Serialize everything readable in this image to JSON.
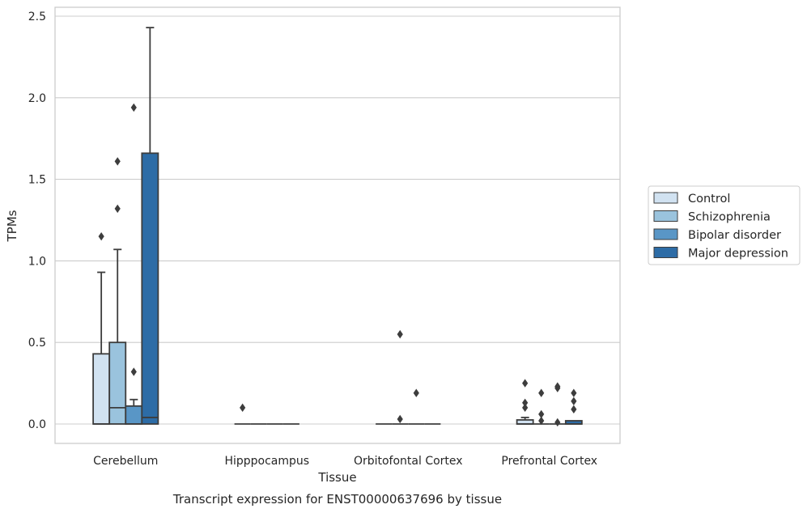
{
  "chart_data": {
    "type": "box",
    "title": "Transcript expression for ENST00000637696 by tissue",
    "xlabel": "Tissue",
    "ylabel": "TPMs",
    "ylim": [
      -0.12,
      2.56
    ],
    "yticks": [
      0.0,
      0.5,
      1.0,
      1.5,
      2.0,
      2.5
    ],
    "ytick_labels": [
      "0.0",
      "0.5",
      "1.0",
      "1.5",
      "2.0",
      "2.5"
    ],
    "grid": true,
    "legend_position": "right",
    "categories": [
      "Cerebellum",
      "Hipppocampus",
      "Orbitofontal Cortex",
      "Prefrontal Cortex"
    ],
    "series": [
      {
        "name": "Control",
        "color": "#d1e2f1",
        "boxes": [
          {
            "q1": 0.0,
            "median": 0.0,
            "q3": 0.43,
            "whisker_low": 0.0,
            "whisker_high": 0.93,
            "outliers": [
              1.15
            ]
          },
          {
            "q1": 0.0,
            "median": 0.0,
            "q3": 0.0,
            "whisker_low": 0.0,
            "whisker_high": 0.0,
            "outliers": [
              0.1
            ]
          },
          {
            "q1": 0.0,
            "median": 0.0,
            "q3": 0.0,
            "whisker_low": 0.0,
            "whisker_high": 0.0,
            "outliers": []
          },
          {
            "q1": 0.0,
            "median": 0.0,
            "q3": 0.025,
            "whisker_low": 0.0,
            "whisker_high": 0.04,
            "outliers": [
              0.1,
              0.13,
              0.25
            ]
          }
        ]
      },
      {
        "name": "Schizophrenia",
        "color": "#9ac3dd",
        "boxes": [
          {
            "q1": 0.0,
            "median": 0.1,
            "q3": 0.5,
            "whisker_low": 0.0,
            "whisker_high": 1.07,
            "outliers": [
              1.32,
              1.61
            ]
          },
          {
            "q1": 0.0,
            "median": 0.0,
            "q3": 0.0,
            "whisker_low": 0.0,
            "whisker_high": 0.0,
            "outliers": []
          },
          {
            "q1": 0.0,
            "median": 0.0,
            "q3": 0.0,
            "whisker_low": 0.0,
            "whisker_high": 0.0,
            "outliers": [
              0.03,
              0.55
            ]
          },
          {
            "q1": 0.0,
            "median": 0.0,
            "q3": 0.0,
            "whisker_low": 0.0,
            "whisker_high": 0.0,
            "outliers": [
              0.02,
              0.06,
              0.19
            ]
          }
        ]
      },
      {
        "name": "Bipolar disorder",
        "color": "#5996c6",
        "boxes": [
          {
            "q1": 0.0,
            "median": 0.0,
            "q3": 0.11,
            "whisker_low": 0.0,
            "whisker_high": 0.15,
            "outliers": [
              0.32,
              1.94
            ]
          },
          {
            "q1": 0.0,
            "median": 0.0,
            "q3": 0.0,
            "whisker_low": 0.0,
            "whisker_high": 0.0,
            "outliers": []
          },
          {
            "q1": 0.0,
            "median": 0.0,
            "q3": 0.0,
            "whisker_low": 0.0,
            "whisker_high": 0.0,
            "outliers": [
              0.19
            ]
          },
          {
            "q1": 0.0,
            "median": 0.0,
            "q3": 0.0,
            "whisker_low": 0.0,
            "whisker_high": 0.0,
            "outliers": [
              0.01,
              0.22,
              0.23
            ]
          }
        ]
      },
      {
        "name": "Major depression",
        "color": "#2d6ca6",
        "boxes": [
          {
            "q1": 0.0,
            "median": 0.04,
            "q3": 1.66,
            "whisker_low": 0.0,
            "whisker_high": 2.43,
            "outliers": []
          },
          {
            "q1": 0.0,
            "median": 0.0,
            "q3": 0.0,
            "whisker_low": 0.0,
            "whisker_high": 0.0,
            "outliers": []
          },
          {
            "q1": 0.0,
            "median": 0.0,
            "q3": 0.0,
            "whisker_low": 0.0,
            "whisker_high": 0.0,
            "outliers": []
          },
          {
            "q1": 0.0,
            "median": 0.0,
            "q3": 0.02,
            "whisker_low": 0.0,
            "whisker_high": 0.02,
            "outliers": [
              0.09,
              0.14,
              0.19
            ]
          }
        ]
      }
    ]
  }
}
